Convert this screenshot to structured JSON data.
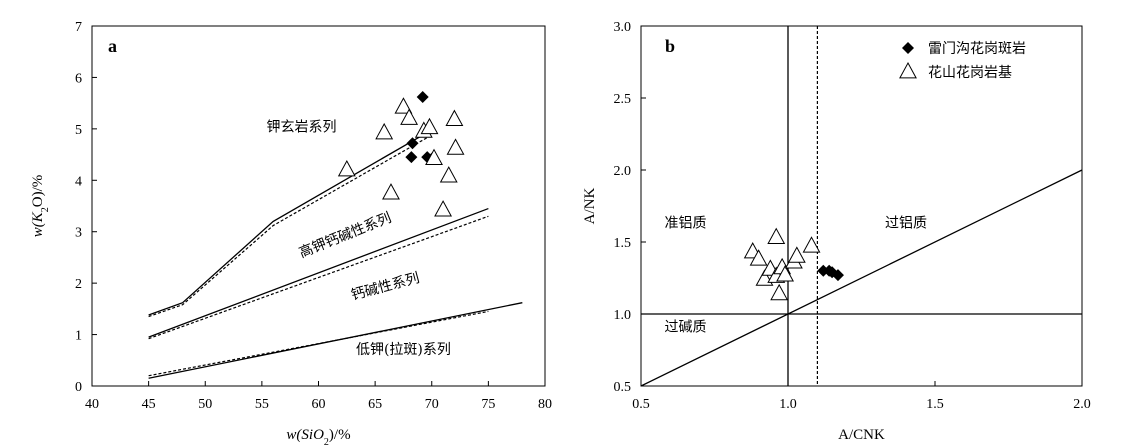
{
  "chart_data": [
    {
      "type": "scatter",
      "panel_label": "a",
      "xlabel_prefix": "w(SiO",
      "xlabel_sub": "2",
      "xlabel_suffix": ")/%",
      "ylabel_prefix": "w(K",
      "ylabel_sub": "2",
      "ylabel_suffix": "O)/%",
      "xlim": [
        40,
        80
      ],
      "ylim": [
        0,
        7
      ],
      "xticks": [
        40,
        45,
        50,
        55,
        60,
        65,
        70,
        75,
        80
      ],
      "yticks": [
        0,
        1,
        2,
        3,
        4,
        5,
        6,
        7
      ],
      "boundaries_solid": [
        [
          [
            45,
            1.38
          ],
          [
            48,
            1.62
          ],
          [
            56,
            3.2
          ],
          [
            70,
            4.98
          ]
        ],
        [
          [
            45,
            0.95
          ],
          [
            75,
            3.45
          ]
        ],
        [
          [
            45,
            0.15
          ],
          [
            78,
            1.62
          ]
        ]
      ],
      "boundaries_dashed": [
        [
          [
            45,
            1.35
          ],
          [
            48,
            1.58
          ],
          [
            56,
            3.12
          ],
          [
            70,
            4.88
          ]
        ],
        [
          [
            45,
            0.92
          ],
          [
            75,
            3.3
          ]
        ],
        [
          [
            45,
            0.2
          ],
          [
            75,
            1.45
          ]
        ]
      ],
      "field_labels": [
        {
          "text": "钾玄岩系列",
          "x": 58.5,
          "y": 4.95,
          "rotate": 0
        },
        {
          "text": "高钾钙碱性系列",
          "x": 62.5,
          "y": 2.85,
          "rotate": -22
        },
        {
          "text": "钙碱性系列",
          "x": 66.0,
          "y": 1.85,
          "rotate": -15
        },
        {
          "text": "低钾(拉斑)系列",
          "x": 67.5,
          "y": 0.62,
          "rotate": 0
        }
      ],
      "series": [
        {
          "name": "雷门沟花岗斑岩",
          "marker": "diamond",
          "points": [
            [
              69.2,
              5.62
            ],
            [
              68.3,
              4.72
            ],
            [
              68.2,
              4.45
            ],
            [
              69.6,
              4.45
            ],
            [
              70.0,
              4.42
            ]
          ]
        },
        {
          "name": "花山花岗岩基",
          "marker": "triangle",
          "points": [
            [
              62.5,
              4.2
            ],
            [
              65.8,
              4.92
            ],
            [
              66.4,
              3.75
            ],
            [
              67.5,
              5.42
            ],
            [
              68.0,
              5.2
            ],
            [
              69.3,
              4.95
            ],
            [
              69.8,
              5.02
            ],
            [
              70.2,
              4.42
            ],
            [
              71.0,
              3.42
            ],
            [
              71.5,
              4.08
            ],
            [
              72.0,
              5.18
            ],
            [
              72.1,
              4.62
            ]
          ]
        }
      ]
    },
    {
      "type": "scatter",
      "panel_label": "b",
      "xlabel": "A/CNK",
      "ylabel": "A/NK",
      "xlim": [
        0.5,
        2.0
      ],
      "ylim": [
        0.5,
        3.0
      ],
      "xticks": [
        "0.5",
        "1.0",
        "1.5",
        "2.0"
      ],
      "yticks": [
        "0.5",
        "1.0",
        "1.5",
        "2.0",
        "2.5",
        "3.0"
      ],
      "field_labels": [
        {
          "text": "准铝质",
          "x": 0.58,
          "y": 1.6
        },
        {
          "text": "过铝质",
          "x": 1.33,
          "y": 1.6
        },
        {
          "text": "过碱质",
          "x": 0.58,
          "y": 0.88
        }
      ],
      "legend": {
        "position": "top-right"
      },
      "series": [
        {
          "name": "雷门沟花岗斑岩",
          "marker": "diamond",
          "points": [
            [
              1.12,
              1.3
            ],
            [
              1.14,
              1.3
            ],
            [
              1.15,
              1.29
            ],
            [
              1.17,
              1.27
            ]
          ]
        },
        {
          "name": "花山花岗岩基",
          "marker": "triangle",
          "points": [
            [
              0.88,
              1.43
            ],
            [
              0.9,
              1.38
            ],
            [
              0.92,
              1.24
            ],
            [
              0.94,
              1.31
            ],
            [
              0.96,
              1.53
            ],
            [
              0.96,
              1.26
            ],
            [
              0.97,
              1.14
            ],
            [
              0.98,
              1.32
            ],
            [
              0.99,
              1.27
            ],
            [
              1.02,
              1.36
            ],
            [
              1.03,
              1.4
            ],
            [
              1.08,
              1.47
            ]
          ]
        }
      ]
    }
  ]
}
